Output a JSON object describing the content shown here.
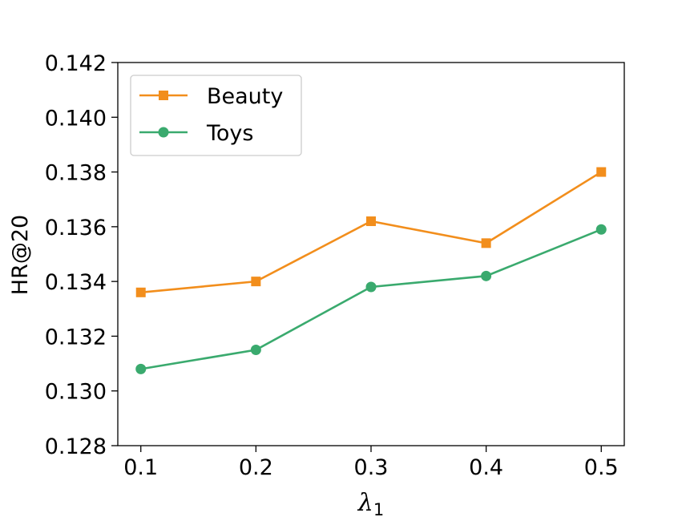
{
  "chart_data": {
    "type": "line",
    "title": "",
    "xlabel": "λ",
    "xlabel_subscript": "1",
    "ylabel": "HR@20",
    "x": [
      0.1,
      0.2,
      0.3,
      0.4,
      0.5
    ],
    "x_tick_labels": [
      "0.1",
      "0.2",
      "0.3",
      "0.4",
      "0.5"
    ],
    "xlim": [
      0.08,
      0.52
    ],
    "ylim": [
      0.128,
      0.142
    ],
    "y_ticks": [
      0.128,
      0.13,
      0.132,
      0.134,
      0.136,
      0.138,
      0.14,
      0.142
    ],
    "y_tick_labels": [
      "0.128",
      "0.130",
      "0.132",
      "0.134",
      "0.136",
      "0.138",
      "0.140",
      "0.142"
    ],
    "grid": false,
    "legend_position": "top-left",
    "series": [
      {
        "name": "Beauty",
        "color": "#f28e1c",
        "marker": "square",
        "values": [
          0.1336,
          0.134,
          0.1362,
          0.1354,
          0.138
        ]
      },
      {
        "name": "Toys",
        "color": "#3aaa6e",
        "marker": "circle",
        "values": [
          0.1308,
          0.1315,
          0.1338,
          0.1342,
          0.1359
        ]
      }
    ]
  }
}
